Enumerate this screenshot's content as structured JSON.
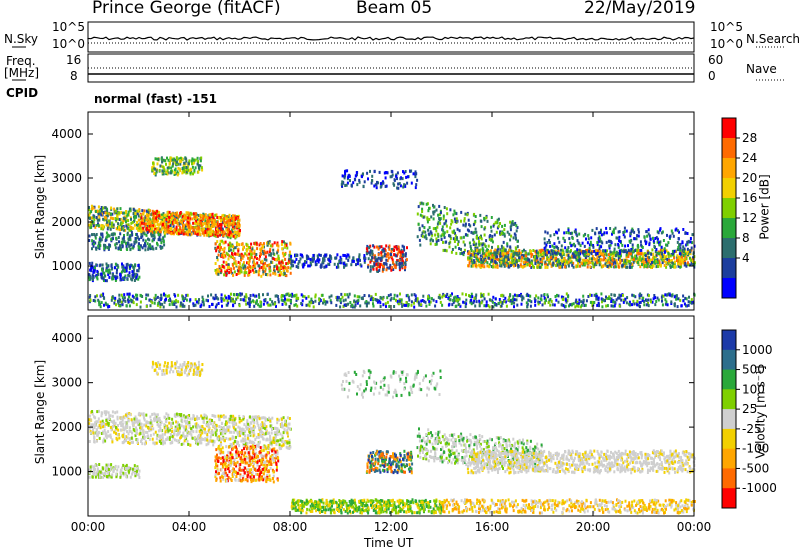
{
  "header": {
    "station": "Prince George (fitACF)",
    "beam": "Beam 05",
    "date": "22/May/2019"
  },
  "status_panels": {
    "nsky_label": "N.Sky",
    "nsearch_label": "N.Search",
    "freq_label_1": "Freq.",
    "freq_label_2": "[MHz]",
    "nave_label": "Nave",
    "cpid_label": "CPID",
    "noise_left_ticks": [
      "10^5",
      "10^0"
    ],
    "noise_right_ticks": [
      "10^5",
      "10^0"
    ],
    "freq_left_ticks": [
      "16",
      "8"
    ],
    "freq_right_ticks": [
      "60",
      "0"
    ],
    "cpid_text": "normal (fast) -151"
  },
  "chart_data": [
    {
      "type": "heatmap",
      "panel": "power",
      "ylabel": "Slant Range [km]",
      "xlabel": "Time UT",
      "x_ticks": [
        "00:00",
        "04:00",
        "08:00",
        "12:00",
        "16:00",
        "20:00",
        "00:00"
      ],
      "y_ticks": [
        "1000",
        "2000",
        "3000",
        "4000"
      ],
      "y_range": [
        0,
        4500
      ],
      "colorbar": {
        "label": "Power [dB]",
        "ticks": [
          "28",
          "24",
          "20",
          "16",
          "12",
          "8",
          "4"
        ],
        "colors": [
          "#ff0000",
          "#ff6a00",
          "#ffa600",
          "#f2d000",
          "#7fcf00",
          "#2aa83a",
          "#2c6e6e",
          "#1c3e9e",
          "#0000ff"
        ]
      }
    },
    {
      "type": "heatmap",
      "panel": "velocity",
      "ylabel": "Slant Range [km]",
      "xlabel": "Time UT",
      "x_ticks": [
        "00:00",
        "04:00",
        "08:00",
        "12:00",
        "16:00",
        "20:00",
        "00:00"
      ],
      "y_ticks": [
        "1000",
        "2000",
        "3000",
        "4000"
      ],
      "y_range": [
        0,
        4500
      ],
      "colorbar": {
        "label": "Velocity [m s⁻¹]",
        "ticks": [
          "1000",
          "500",
          "100",
          "25",
          "-25",
          "-100",
          "-500",
          "-1000"
        ],
        "colors": [
          "#1c3aa8",
          "#2c6e8c",
          "#2aa83a",
          "#7fcf00",
          "#cfcfcf",
          "#f2d000",
          "#ffa600",
          "#ff6a00",
          "#ff0000"
        ]
      }
    }
  ],
  "axis": {
    "time_label": "Time UT"
  }
}
